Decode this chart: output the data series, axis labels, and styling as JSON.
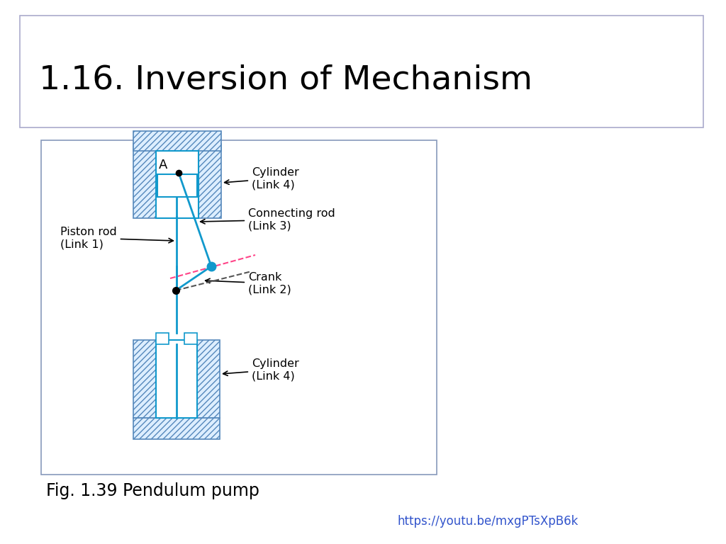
{
  "title": "1.16. Inversion of Mechanism",
  "fig_caption": "Fig. 1.39 Pendulum pump",
  "url": "https://youtu.be/mxgPTsXpB6k",
  "background_color": "#ffffff",
  "hatch_color": "#5588bb",
  "cyan_color": "#1199cc",
  "pink_color": "#ff4488",
  "black_color": "#000000"
}
